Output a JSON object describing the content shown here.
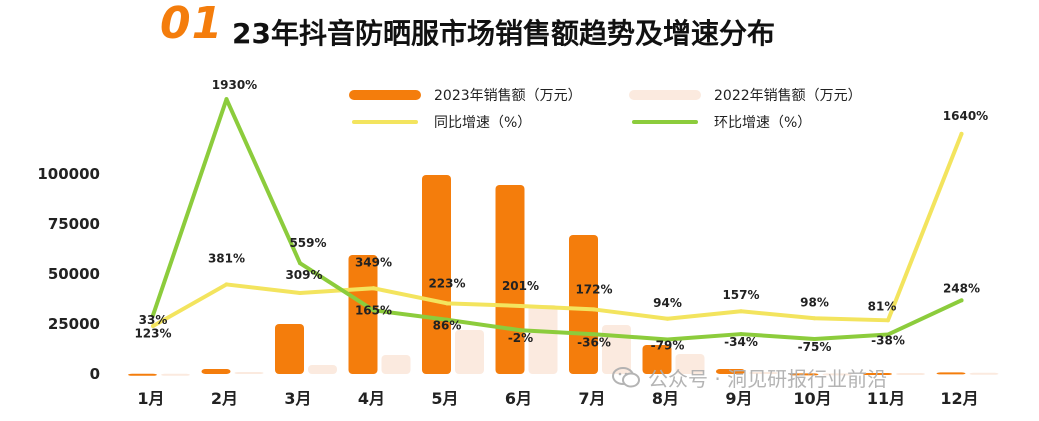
{
  "header": {
    "number": "01",
    "title": "23年抖音防晒服市场销售额趋势及增速分布"
  },
  "watermark": "公众号 · 洞见研报行业前沿",
  "colors": {
    "bar2023": "#f47d0c",
    "bar2022": "#fbeadf",
    "yoy": "#f3e45e",
    "mom": "#8ccc3c",
    "accent": "#f47d0c"
  },
  "chart_data": {
    "type": "bar",
    "title": "23年抖音防晒服市场销售额趋势及增速分布",
    "categories": [
      "1月",
      "2月",
      "3月",
      "4月",
      "5月",
      "6月",
      "7月",
      "8月",
      "9月",
      "10月",
      "11月",
      "12月"
    ],
    "series": [
      {
        "name": "2023年销售额（万元）",
        "kind": "bar",
        "values": [
          100,
          2500,
          25000,
          59500,
          99500,
          94500,
          69500,
          14500,
          2500,
          300,
          500,
          800
        ]
      },
      {
        "name": "2022年销售额（万元）",
        "kind": "bar",
        "values": [
          100,
          1000,
          4500,
          9500,
          22000,
          34500,
          24500,
          10000,
          1000,
          300,
          500,
          600
        ]
      },
      {
        "name": "同比增速（%）",
        "kind": "line",
        "values": [
          33,
          381,
          309,
          349,
          223,
          201,
          172,
          94,
          157,
          98,
          81,
          1640
        ],
        "labels": [
          "33%",
          "381%",
          "309%",
          "349%",
          "223%",
          "201%",
          "172%",
          "94%",
          "157%",
          "98%",
          "81%",
          "1640%"
        ]
      },
      {
        "name": "环比增速（%）",
        "kind": "line",
        "values": [
          123,
          1930,
          559,
          165,
          86,
          -2,
          -36,
          -79,
          -34,
          -75,
          -38,
          248
        ],
        "labels": [
          "123%",
          "1930%",
          "559%",
          "165%",
          "86%",
          "-2%",
          "-36%",
          "-79%",
          "-34%",
          "-75%",
          "-38%",
          "248%"
        ]
      }
    ],
    "yticks": [
      "100000",
      "75000",
      "50000",
      "25000",
      "0"
    ],
    "ylim": [
      0,
      100000
    ],
    "legend_position": "top-center",
    "grid": false
  }
}
